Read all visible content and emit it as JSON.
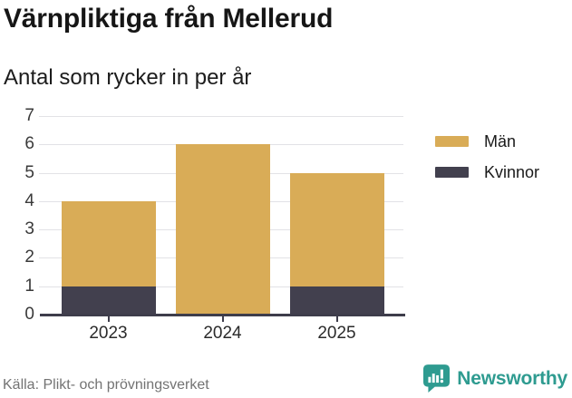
{
  "header": {
    "title": "Värnpliktiga från Mellerud",
    "subtitle": "Antal som rycker in per år"
  },
  "chart_data": {
    "type": "bar",
    "stacked": true,
    "categories": [
      "2023",
      "2024",
      "2025"
    ],
    "series": [
      {
        "name": "Kvinnor",
        "color": "#42404e",
        "values": [
          1,
          0,
          1
        ]
      },
      {
        "name": "Män",
        "color": "#d9ac57",
        "values": [
          3,
          6,
          4
        ]
      }
    ],
    "totals": [
      4,
      6,
      5
    ],
    "legend": [
      {
        "label": "Män",
        "color": "#d9ac57"
      },
      {
        "label": "Kvinnor",
        "color": "#42404e"
      }
    ],
    "legend_position": "right",
    "ylim": [
      0,
      7
    ],
    "yticks": [
      0,
      1,
      2,
      3,
      4,
      5,
      6,
      7
    ],
    "grid": true,
    "xlabel": "",
    "ylabel": ""
  },
  "footer": {
    "source": "Källa: Plikt- och prövningsverket",
    "brand_name": "Newsworthy"
  },
  "colors": {
    "men": "#d9ac57",
    "women": "#42404e",
    "grid": "#e2e2e6",
    "axis": "#3e3d4b",
    "brand_teal": "#2e9b90",
    "title_text": "#161616",
    "source_text": "#737373"
  },
  "icons": {
    "brand_logo": "bar-chart-speech-bubble-icon"
  }
}
